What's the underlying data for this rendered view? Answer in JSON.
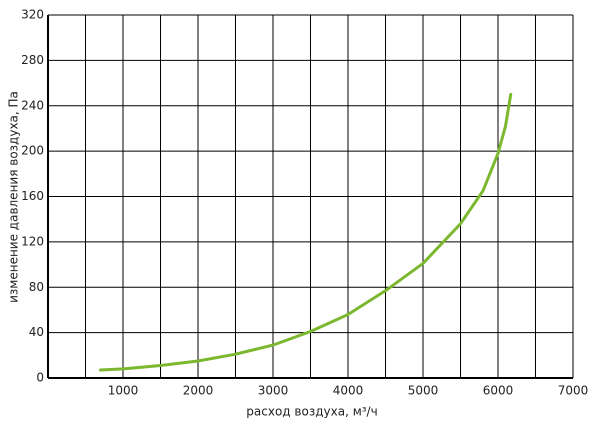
{
  "chart_data": {
    "type": "line",
    "x_label": "расход воздуха, м³/ч",
    "y_label": "изменение давления воздуха, Па",
    "x": [
      700,
      1000,
      1500,
      2000,
      2500,
      3000,
      3500,
      4000,
      4500,
      5000,
      5500,
      5800,
      6000,
      6100,
      6170
    ],
    "series": [
      {
        "color": "#7cb82f",
        "values": [
          7,
          8,
          11,
          15,
          21,
          29,
          41,
          56,
          77,
          101,
          136,
          165,
          198,
          222,
          250
        ]
      }
    ],
    "xlim": [
      0,
      7000
    ],
    "xticks": [
      1000,
      2000,
      3000,
      4000,
      5000,
      6000,
      7000
    ],
    "xminorticks": [
      500,
      1500,
      2500,
      3500,
      4500,
      5500,
      6500
    ],
    "ylim": [
      0,
      320
    ],
    "yticks": [
      0,
      40,
      80,
      120,
      160,
      200,
      240,
      280,
      320
    ],
    "grid": true
  }
}
